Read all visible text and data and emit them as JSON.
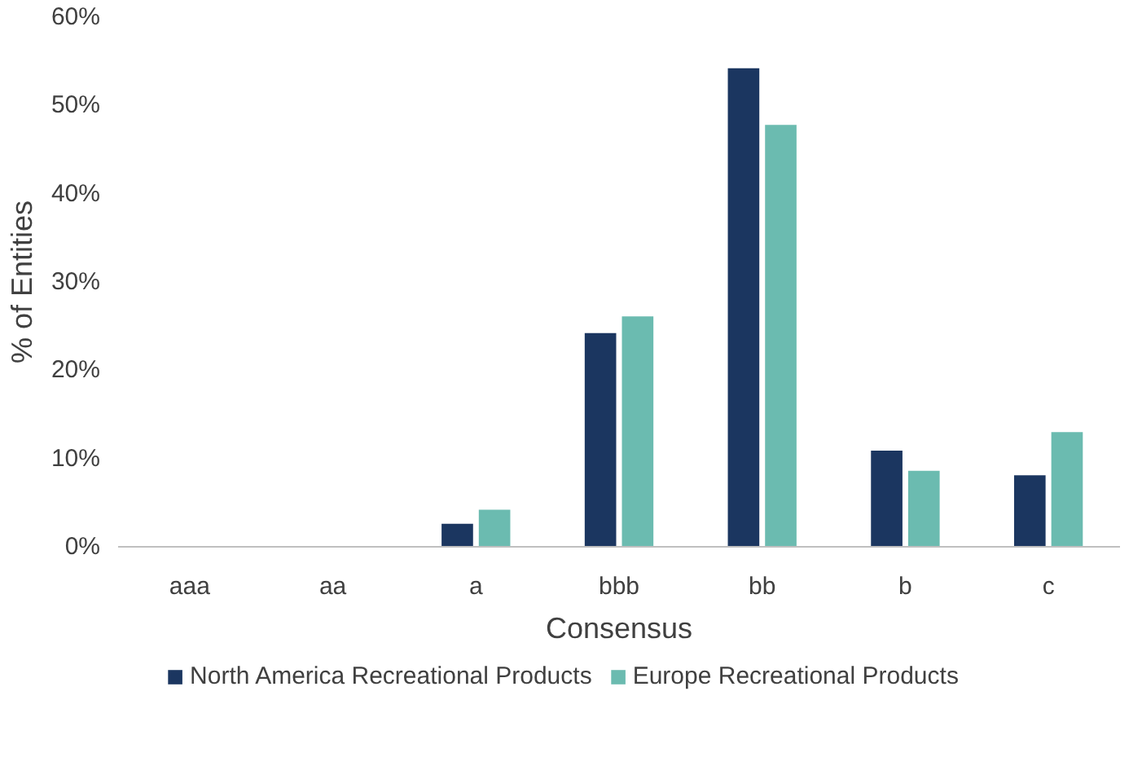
{
  "chart_data": {
    "type": "bar",
    "xlabel": "Consensus",
    "ylabel": "% of Entities",
    "categories": [
      "aaa",
      "aa",
      "a",
      "bbb",
      "bb",
      "b",
      "c"
    ],
    "series": [
      {
        "name": "North America Recreational Products",
        "color": "#1b3660",
        "values": [
          0,
          0,
          2.6,
          24.2,
          54.2,
          10.9,
          8.1
        ]
      },
      {
        "name": "Europe Recreational Products",
        "color": "#6bbbb0",
        "values": [
          0,
          0,
          4.2,
          26.1,
          47.8,
          8.6,
          13.0
        ]
      }
    ],
    "ylim": [
      0,
      60
    ],
    "yticks": [
      {
        "value": 0,
        "label": "0%"
      },
      {
        "value": 10,
        "label": "10%"
      },
      {
        "value": 20,
        "label": "20%"
      },
      {
        "value": 30,
        "label": "30%"
      },
      {
        "value": 40,
        "label": "40%"
      },
      {
        "value": 50,
        "label": "50%"
      },
      {
        "value": 60,
        "label": "60%"
      }
    ],
    "grid": false,
    "legend": "bottom"
  }
}
